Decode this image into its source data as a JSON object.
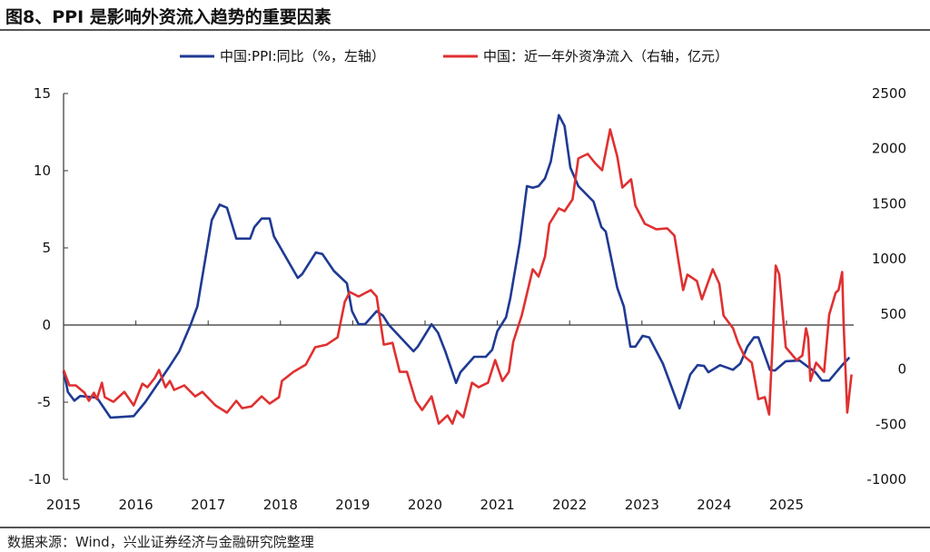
{
  "title": "图8、PPI 是影响外资流入趋势的重要因素",
  "source": "数据来源：Wind，兴业证券经济与金融研究院整理",
  "chart_data": {
    "type": "line",
    "title": "图8、PPI 是影响外资流入趋势的重要因素",
    "x_ticks": [
      "2015",
      "2016",
      "2017",
      "2018",
      "2019",
      "2020",
      "2021",
      "2022",
      "2023",
      "2024",
      "2025"
    ],
    "xlim": [
      2015,
      2026.1
    ],
    "left_axis": {
      "ylim": [
        -10,
        15
      ],
      "ticks": [
        "15",
        "10",
        "5",
        "0",
        "-5",
        "-10"
      ]
    },
    "right_axis": {
      "ylim": [
        -1000,
        2500
      ],
      "ticks": [
        "2500",
        "2000",
        "1500",
        "1000",
        "500",
        "0",
        "-500",
        "-1000"
      ]
    },
    "legend_position": "top",
    "series": [
      {
        "name": "中国:PPI:同比（%，左轴）",
        "axis": "left",
        "color": "#1f3a93",
        "points": [
          [
            2015.0,
            -3.0
          ],
          [
            2015.06,
            -4.35
          ],
          [
            2015.15,
            -4.9
          ],
          [
            2015.23,
            -4.6
          ],
          [
            2015.46,
            -4.7
          ],
          [
            2015.65,
            -6.0
          ],
          [
            2015.97,
            -5.9
          ],
          [
            2016.13,
            -5.0
          ],
          [
            2016.47,
            -2.65
          ],
          [
            2016.6,
            -1.7
          ],
          [
            2016.76,
            0.05
          ],
          [
            2016.85,
            1.2
          ],
          [
            2017.05,
            6.8
          ],
          [
            2017.16,
            7.8
          ],
          [
            2017.26,
            7.6
          ],
          [
            2017.39,
            5.6
          ],
          [
            2017.58,
            5.6
          ],
          [
            2017.64,
            6.35
          ],
          [
            2017.74,
            6.9
          ],
          [
            2017.85,
            6.9
          ],
          [
            2017.91,
            5.75
          ],
          [
            2018.24,
            3.05
          ],
          [
            2018.3,
            3.3
          ],
          [
            2018.49,
            4.7
          ],
          [
            2018.58,
            4.6
          ],
          [
            2018.74,
            3.5
          ],
          [
            2018.92,
            2.7
          ],
          [
            2018.99,
            0.9
          ],
          [
            2019.08,
            0.05
          ],
          [
            2019.17,
            0.05
          ],
          [
            2019.33,
            0.9
          ],
          [
            2019.42,
            0.6
          ],
          [
            2019.5,
            0.0
          ],
          [
            2019.84,
            -1.7
          ],
          [
            2019.9,
            -1.4
          ],
          [
            2020.09,
            0.05
          ],
          [
            2020.18,
            -0.5
          ],
          [
            2020.28,
            -1.7
          ],
          [
            2020.43,
            -3.75
          ],
          [
            2020.49,
            -3.06
          ],
          [
            2020.68,
            -2.06
          ],
          [
            2020.84,
            -2.06
          ],
          [
            2020.93,
            -1.6
          ],
          [
            2021.0,
            -0.4
          ],
          [
            2021.12,
            0.5
          ],
          [
            2021.18,
            1.75
          ],
          [
            2021.31,
            5.35
          ],
          [
            2021.41,
            9.0
          ],
          [
            2021.49,
            8.9
          ],
          [
            2021.57,
            9.0
          ],
          [
            2021.66,
            9.5
          ],
          [
            2021.74,
            10.6
          ],
          [
            2021.85,
            13.6
          ],
          [
            2021.93,
            12.9
          ],
          [
            2022.01,
            10.2
          ],
          [
            2022.12,
            9.0
          ],
          [
            2022.33,
            8.0
          ],
          [
            2022.44,
            6.35
          ],
          [
            2022.5,
            6.05
          ],
          [
            2022.66,
            2.4
          ],
          [
            2022.75,
            1.2
          ],
          [
            2022.84,
            -1.4
          ],
          [
            2022.91,
            -1.4
          ],
          [
            2023.01,
            -0.7
          ],
          [
            2023.1,
            -0.8
          ],
          [
            2023.29,
            -2.5
          ],
          [
            2023.52,
            -5.4
          ],
          [
            2023.67,
            -3.2
          ],
          [
            2023.77,
            -2.6
          ],
          [
            2023.86,
            -2.65
          ],
          [
            2023.92,
            -3.06
          ],
          [
            2024.08,
            -2.6
          ],
          [
            2024.26,
            -2.9
          ],
          [
            2024.36,
            -2.5
          ],
          [
            2024.46,
            -1.4
          ],
          [
            2024.55,
            -0.8
          ],
          [
            2024.61,
            -0.8
          ],
          [
            2024.77,
            -2.9
          ],
          [
            2024.84,
            -2.95
          ],
          [
            2024.99,
            -2.35
          ],
          [
            2025.18,
            -2.3
          ],
          [
            2025.4,
            -3.06
          ],
          [
            2025.49,
            -3.6
          ],
          [
            2025.59,
            -3.6
          ],
          [
            2025.77,
            -2.6
          ],
          [
            2025.87,
            -2.1
          ]
        ]
      },
      {
        "name": "中国：近一年外资净流入（右轴，亿元）",
        "axis": "right",
        "color": "#e03030",
        "points": [
          [
            2015.0,
            -8
          ],
          [
            2015.08,
            -148
          ],
          [
            2015.17,
            -148
          ],
          [
            2015.29,
            -214
          ],
          [
            2015.35,
            -288
          ],
          [
            2015.42,
            -214
          ],
          [
            2015.46,
            -272
          ],
          [
            2015.53,
            -124
          ],
          [
            2015.57,
            -255
          ],
          [
            2015.69,
            -297
          ],
          [
            2015.84,
            -206
          ],
          [
            2015.97,
            -329
          ],
          [
            2016.09,
            -132
          ],
          [
            2016.16,
            -165
          ],
          [
            2016.26,
            -82
          ],
          [
            2016.32,
            -8
          ],
          [
            2016.41,
            -165
          ],
          [
            2016.47,
            -107
          ],
          [
            2016.53,
            -189
          ],
          [
            2016.67,
            -148
          ],
          [
            2016.82,
            -247
          ],
          [
            2016.92,
            -206
          ],
          [
            2017.1,
            -329
          ],
          [
            2017.26,
            -395
          ],
          [
            2017.39,
            -288
          ],
          [
            2017.47,
            -354
          ],
          [
            2017.6,
            -338
          ],
          [
            2017.74,
            -247
          ],
          [
            2017.85,
            -313
          ],
          [
            2017.98,
            -255
          ],
          [
            2018.02,
            -107
          ],
          [
            2018.18,
            -25
          ],
          [
            2018.35,
            41
          ],
          [
            2018.48,
            198
          ],
          [
            2018.64,
            222
          ],
          [
            2018.79,
            288
          ],
          [
            2018.89,
            610
          ],
          [
            2018.96,
            700
          ],
          [
            2019.08,
            659
          ],
          [
            2019.25,
            717
          ],
          [
            2019.33,
            659
          ],
          [
            2019.43,
            222
          ],
          [
            2019.55,
            239
          ],
          [
            2019.65,
            -25
          ],
          [
            2019.75,
            -25
          ],
          [
            2019.87,
            -288
          ],
          [
            2019.96,
            -371
          ],
          [
            2020.09,
            -247
          ],
          [
            2020.19,
            -494
          ],
          [
            2020.31,
            -420
          ],
          [
            2020.38,
            -494
          ],
          [
            2020.44,
            -379
          ],
          [
            2020.53,
            -437
          ],
          [
            2020.65,
            -124
          ],
          [
            2020.74,
            -165
          ],
          [
            2020.87,
            -124
          ],
          [
            2020.97,
            82
          ],
          [
            2021.07,
            -107
          ],
          [
            2021.16,
            -25
          ],
          [
            2021.22,
            247
          ],
          [
            2021.34,
            494
          ],
          [
            2021.49,
            906
          ],
          [
            2021.57,
            840
          ],
          [
            2021.66,
            1021
          ],
          [
            2021.72,
            1318
          ],
          [
            2021.85,
            1458
          ],
          [
            2021.93,
            1433
          ],
          [
            2022.04,
            1540
          ],
          [
            2022.12,
            1911
          ],
          [
            2022.25,
            1952
          ],
          [
            2022.35,
            1870
          ],
          [
            2022.45,
            1804
          ],
          [
            2022.56,
            2175
          ],
          [
            2022.66,
            1927
          ],
          [
            2022.73,
            1647
          ],
          [
            2022.85,
            1722
          ],
          [
            2022.91,
            1483
          ],
          [
            2023.04,
            1318
          ],
          [
            2023.2,
            1268
          ],
          [
            2023.35,
            1277
          ],
          [
            2023.45,
            1211
          ],
          [
            2023.57,
            717
          ],
          [
            2023.63,
            857
          ],
          [
            2023.76,
            799
          ],
          [
            2023.83,
            634
          ],
          [
            2023.98,
            906
          ],
          [
            2024.07,
            774
          ],
          [
            2024.13,
            486
          ],
          [
            2024.26,
            371
          ],
          [
            2024.33,
            239
          ],
          [
            2024.42,
            115
          ],
          [
            2024.52,
            58
          ],
          [
            2024.61,
            -272
          ],
          [
            2024.7,
            -255
          ],
          [
            2024.76,
            -412
          ],
          [
            2024.8,
            140
          ],
          [
            2024.85,
            939
          ],
          [
            2024.9,
            857
          ],
          [
            2024.99,
            198
          ],
          [
            2025.14,
            82
          ],
          [
            2025.22,
            124
          ],
          [
            2025.27,
            371
          ],
          [
            2025.3,
            280
          ],
          [
            2025.33,
            -107
          ],
          [
            2025.41,
            58
          ],
          [
            2025.52,
            -25
          ],
          [
            2025.59,
            494
          ],
          [
            2025.68,
            692
          ],
          [
            2025.72,
            717
          ],
          [
            2025.77,
            881
          ],
          [
            2025.79,
            412
          ],
          [
            2025.84,
            -395
          ],
          [
            2025.9,
            -49
          ]
        ]
      }
    ]
  }
}
